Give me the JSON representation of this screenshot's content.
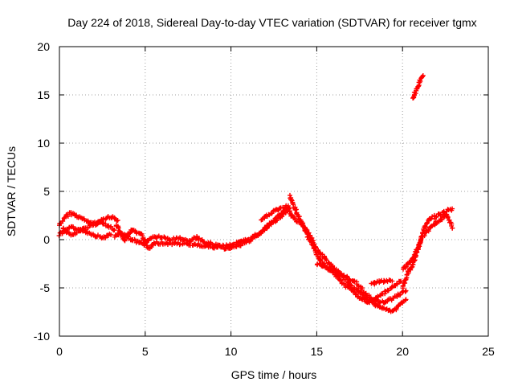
{
  "chart_data": {
    "type": "scatter",
    "title": "Day 224 of 2018, Sidereal Day-to-day VTEC variation (SDTVAR) for receiver tgmx",
    "xlabel": "GPS time / hours",
    "ylabel": "SDTVAR / TECUs",
    "xlim": [
      0,
      25
    ],
    "ylim": [
      -10,
      20
    ],
    "xticks": [
      0,
      5,
      10,
      15,
      20,
      25
    ],
    "yticks": [
      -10,
      -5,
      0,
      5,
      10,
      15,
      20
    ],
    "grid": true,
    "marker": "+",
    "color": "#ff0000",
    "series": [
      {
        "name": "SDTVAR",
        "tracks": [
          [
            [
              0.0,
              1.5
            ],
            [
              0.3,
              2.2
            ],
            [
              0.6,
              2.8
            ],
            [
              1.0,
              2.5
            ],
            [
              1.5,
              2.0
            ],
            [
              2.0,
              1.6
            ],
            [
              2.5,
              1.8
            ],
            [
              2.8,
              1.5
            ],
            [
              3.2,
              1.0
            ]
          ],
          [
            [
              0.0,
              0.5
            ],
            [
              0.4,
              1.0
            ],
            [
              0.8,
              1.3
            ],
            [
              1.2,
              1.0
            ],
            [
              1.6,
              0.8
            ],
            [
              2.0,
              0.5
            ],
            [
              2.5,
              0.2
            ],
            [
              3.0,
              0.5
            ]
          ],
          [
            [
              0.2,
              1.2
            ],
            [
              0.7,
              0.4
            ],
            [
              1.2,
              0.9
            ],
            [
              1.8,
              1.5
            ],
            [
              2.4,
              2.0
            ],
            [
              3.0,
              2.4
            ],
            [
              3.4,
              2.0
            ]
          ],
          [
            [
              3.2,
              0.3
            ],
            [
              3.6,
              0.6
            ],
            [
              4.0,
              0.2
            ],
            [
              4.5,
              -0.2
            ],
            [
              5.0,
              -0.5
            ],
            [
              5.3,
              0.2
            ],
            [
              5.8,
              0.3
            ],
            [
              6.5,
              0.0
            ],
            [
              7.0,
              0.2
            ],
            [
              7.5,
              -0.2
            ],
            [
              8.0,
              0.2
            ],
            [
              8.5,
              -0.3
            ],
            [
              9.0,
              -0.5
            ],
            [
              9.5,
              -0.7
            ],
            [
              10.0,
              -0.5
            ],
            [
              10.5,
              -0.3
            ],
            [
              11.0,
              0.0
            ],
            [
              11.5,
              0.5
            ],
            [
              12.0,
              1.2
            ],
            [
              12.5,
              2.0
            ],
            [
              13.0,
              2.8
            ],
            [
              13.4,
              3.2
            ]
          ],
          [
            [
              3.3,
              1.5
            ],
            [
              3.8,
              0.0
            ],
            [
              4.2,
              1.0
            ],
            [
              4.8,
              0.5
            ],
            [
              5.2,
              -1.0
            ],
            [
              5.6,
              -0.3
            ],
            [
              6.2,
              -0.4
            ],
            [
              7.0,
              -0.4
            ],
            [
              7.8,
              -0.5
            ],
            [
              8.4,
              -0.6
            ],
            [
              9.2,
              -0.8
            ],
            [
              9.8,
              -0.9
            ],
            [
              10.4,
              -0.6
            ],
            [
              11.0,
              -0.2
            ],
            [
              11.6,
              0.5
            ],
            [
              12.2,
              1.5
            ],
            [
              12.8,
              2.2
            ],
            [
              13.2,
              2.8
            ]
          ],
          [
            [
              11.8,
              2.0
            ],
            [
              12.2,
              2.6
            ],
            [
              12.6,
              3.1
            ],
            [
              13.0,
              3.2
            ],
            [
              13.3,
              3.5
            ],
            [
              13.5,
              2.5
            ],
            [
              13.8,
              2.0
            ],
            [
              14.2,
              1.5
            ],
            [
              14.6,
              0.5
            ],
            [
              15.0,
              -1.0
            ],
            [
              15.5,
              -2.0
            ],
            [
              16.0,
              -3.0
            ],
            [
              16.5,
              -3.8
            ],
            [
              17.0,
              -4.8
            ],
            [
              17.5,
              -5.5
            ],
            [
              18.0,
              -6.2
            ],
            [
              18.5,
              -6.8
            ],
            [
              19.0,
              -7.2
            ],
            [
              19.4,
              -7.5
            ],
            [
              19.8,
              -6.8
            ],
            [
              20.2,
              -6.2
            ]
          ],
          [
            [
              13.4,
              4.5
            ],
            [
              13.8,
              3.0
            ],
            [
              14.3,
              1.0
            ],
            [
              14.8,
              -0.8
            ],
            [
              15.2,
              -2.2
            ],
            [
              15.7,
              -3.0
            ],
            [
              16.3,
              -3.5
            ],
            [
              16.8,
              -4.0
            ],
            [
              17.3,
              -4.5
            ],
            [
              17.8,
              -5.5
            ],
            [
              18.3,
              -6.2
            ],
            [
              18.8,
              -6.5
            ],
            [
              19.3,
              -6.2
            ],
            [
              19.7,
              -5.8
            ],
            [
              20.2,
              -5.3
            ]
          ],
          [
            [
              15.0,
              -2.5
            ],
            [
              15.5,
              -2.8
            ],
            [
              16.0,
              -3.5
            ],
            [
              16.5,
              -4.5
            ],
            [
              17.0,
              -5.2
            ],
            [
              17.5,
              -6.0
            ],
            [
              18.0,
              -6.5
            ],
            [
              18.5,
              -6.0
            ],
            [
              19.0,
              -5.5
            ],
            [
              19.5,
              -4.8
            ],
            [
              19.9,
              -4.3
            ]
          ],
          [
            [
              18.2,
              -4.6
            ],
            [
              18.6,
              -4.4
            ],
            [
              19.0,
              -4.3
            ],
            [
              19.4,
              -4.3
            ]
          ],
          [
            [
              20.0,
              -3.0
            ],
            [
              20.3,
              -2.6
            ],
            [
              20.6,
              -2.0
            ],
            [
              20.8,
              -1.2
            ],
            [
              21.0,
              -0.3
            ],
            [
              21.2,
              0.8
            ],
            [
              21.4,
              1.8
            ],
            [
              21.7,
              2.2
            ],
            [
              22.0,
              2.5
            ],
            [
              22.3,
              2.7
            ],
            [
              22.6,
              3.0
            ],
            [
              22.9,
              3.2
            ]
          ],
          [
            [
              20.0,
              -5.0
            ],
            [
              20.3,
              -3.5
            ],
            [
              20.6,
              -2.6
            ],
            [
              20.9,
              -1.0
            ],
            [
              21.1,
              0.2
            ],
            [
              21.4,
              0.8
            ],
            [
              21.7,
              1.4
            ],
            [
              22.0,
              1.8
            ],
            [
              22.3,
              2.2
            ],
            [
              22.6,
              2.6
            ],
            [
              22.9,
              1.2
            ]
          ],
          [
            [
              20.6,
              14.6
            ],
            [
              20.8,
              15.5
            ],
            [
              21.0,
              16.3
            ],
            [
              21.2,
              17.0
            ]
          ]
        ]
      }
    ]
  }
}
